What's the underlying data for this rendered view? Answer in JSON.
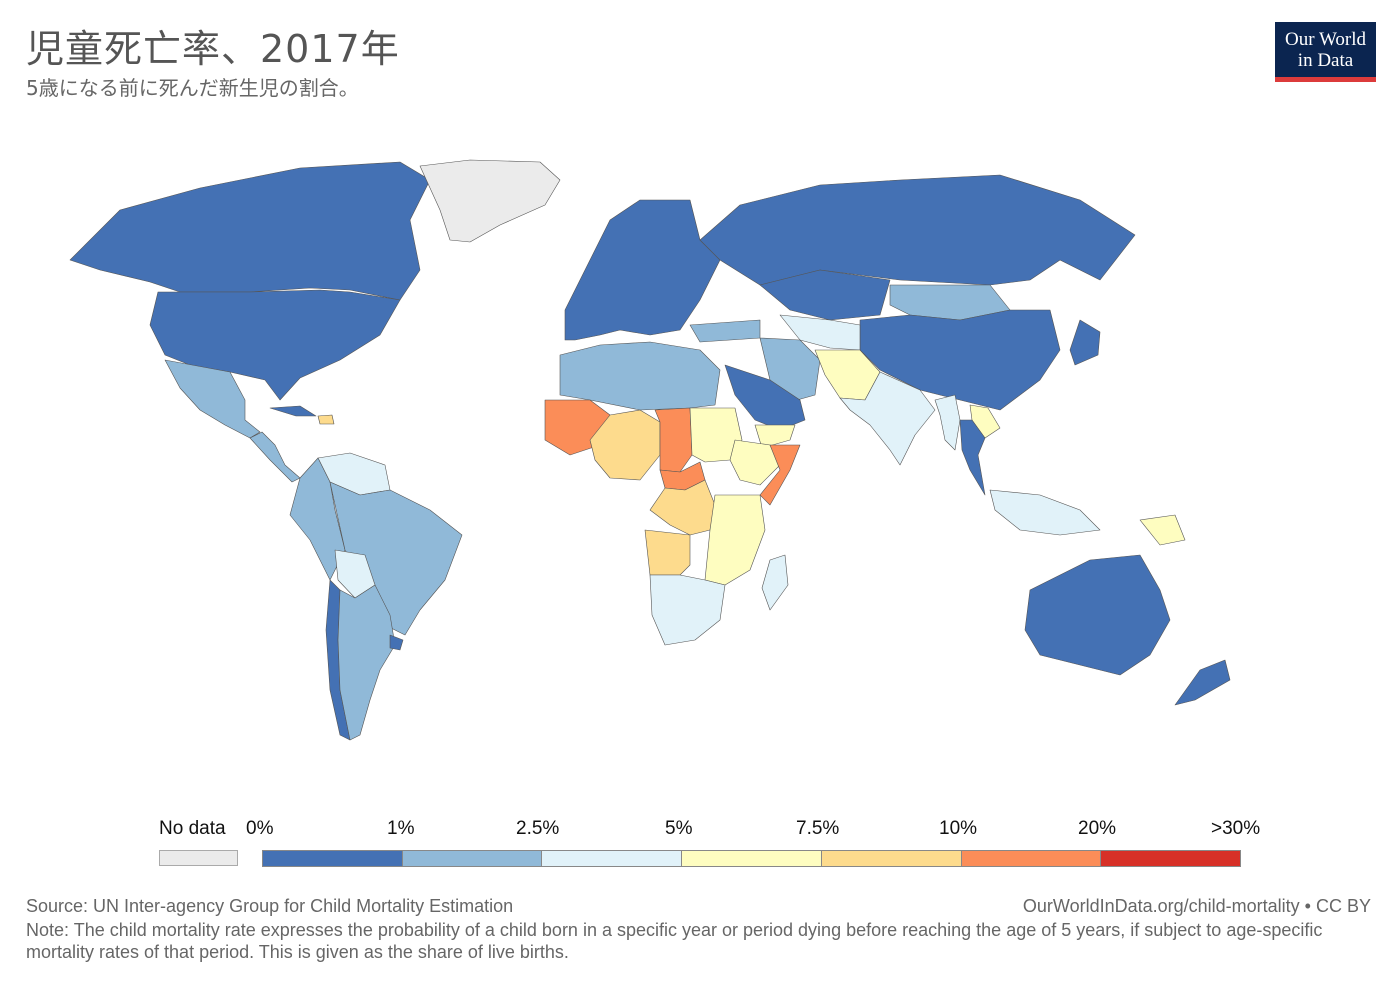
{
  "header": {
    "title": "児童死亡率、2017年",
    "subtitle": "5歳になる前に死んだ新生児の割合。"
  },
  "logo": {
    "line1": "Our World",
    "line2": "in Data",
    "bg_color": "#0b2550",
    "bar_color": "#dc3b3b"
  },
  "legend": {
    "no_data_label": "No data",
    "no_data_color": "#ebebeb",
    "ticks": [
      "0%",
      "1%",
      "2.5%",
      "5%",
      "7.5%",
      "10%",
      "20%",
      ">30%"
    ],
    "colors": [
      "#4471b4",
      "#90b9d8",
      "#e1f2f9",
      "#fefdc0",
      "#fddb8d",
      "#fb8d58",
      "#d73027"
    ]
  },
  "footer": {
    "source": "Source: UN Inter-agency Group for Child Mortality Estimation",
    "url": "OurWorldInData.org/child-mortality • CC BY",
    "note": "Note: The child mortality rate expresses the probability of a child born in a specific year or period dying before reaching the age of 5 years, if subject to age-specific mortality rates of that period. This is given as the share of live births."
  },
  "map_data": {
    "type": "choropleth",
    "metric": "child mortality rate (share of live births dying before age 5)",
    "year": 2017,
    "regions": [
      {
        "name": "Canada",
        "bin": 0
      },
      {
        "name": "United States",
        "bin": 0
      },
      {
        "name": "Greenland",
        "bin": "nodata"
      },
      {
        "name": "Mexico",
        "bin": 1
      },
      {
        "name": "Central America",
        "bin": 1
      },
      {
        "name": "Cuba",
        "bin": 0
      },
      {
        "name": "Haiti",
        "bin": 4
      },
      {
        "name": "Venezuela / Guyana",
        "bin": 2
      },
      {
        "name": "Brazil",
        "bin": 1
      },
      {
        "name": "Andean South America",
        "bin": 1
      },
      {
        "name": "Bolivia",
        "bin": 2
      },
      {
        "name": "Argentina",
        "bin": 1
      },
      {
        "name": "Chile",
        "bin": 0
      },
      {
        "name": "Uruguay",
        "bin": 0
      },
      {
        "name": "Europe",
        "bin": 0
      },
      {
        "name": "Russia",
        "bin": 0
      },
      {
        "name": "Kazakhstan",
        "bin": 0
      },
      {
        "name": "Mongolia",
        "bin": 1
      },
      {
        "name": "China",
        "bin": 0
      },
      {
        "name": "Japan",
        "bin": 0
      },
      {
        "name": "Central Asia",
        "bin": 2
      },
      {
        "name": "Turkey",
        "bin": 1
      },
      {
        "name": "Iran",
        "bin": 1
      },
      {
        "name": "Saudi Arabia",
        "bin": 0
      },
      {
        "name": "Yemen",
        "bin": 3
      },
      {
        "name": "Afghanistan / Pakistan",
        "bin": 3
      },
      {
        "name": "India",
        "bin": 2
      },
      {
        "name": "Myanmar",
        "bin": 2
      },
      {
        "name": "Laos",
        "bin": 3
      },
      {
        "name": "Thailand",
        "bin": 0
      },
      {
        "name": "Indonesia",
        "bin": 2
      },
      {
        "name": "Papua New Guinea",
        "bin": 3
      },
      {
        "name": "Australia",
        "bin": 0
      },
      {
        "name": "New Zealand",
        "bin": 0
      },
      {
        "name": "North Africa",
        "bin": 1
      },
      {
        "name": "Mali",
        "bin": 5
      },
      {
        "name": "Niger / Nigeria region",
        "bin": 4
      },
      {
        "name": "Chad",
        "bin": 5
      },
      {
        "name": "Sudan",
        "bin": 3
      },
      {
        "name": "Central African Republic",
        "bin": 5
      },
      {
        "name": "Ethiopia",
        "bin": 3
      },
      {
        "name": "Somalia",
        "bin": 5
      },
      {
        "name": "DR Congo",
        "bin": 4
      },
      {
        "name": "Angola",
        "bin": 4
      },
      {
        "name": "East Africa",
        "bin": 3
      },
      {
        "name": "Southern Africa",
        "bin": 2
      },
      {
        "name": "Madagascar",
        "bin": 2
      }
    ]
  }
}
